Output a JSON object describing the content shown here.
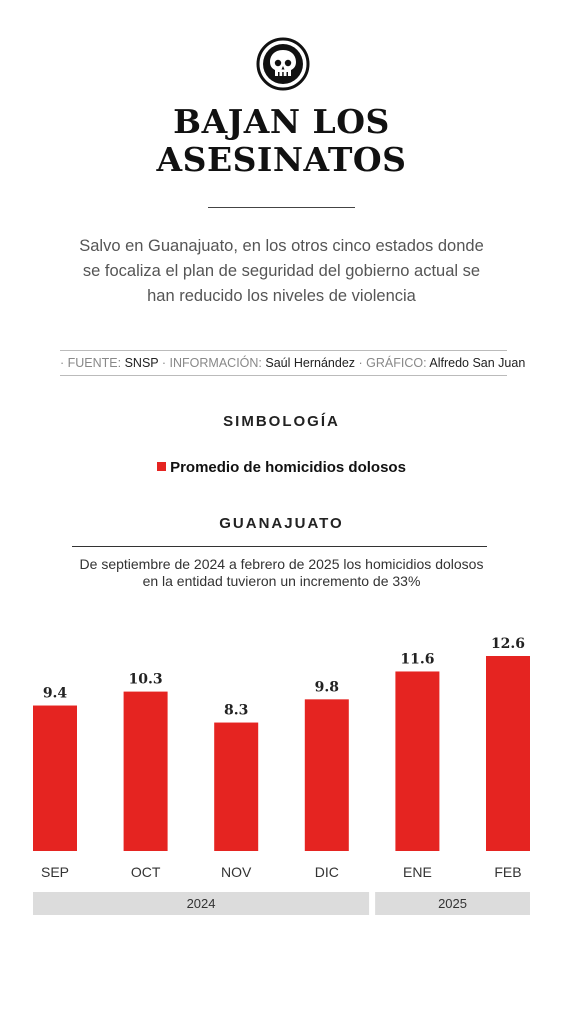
{
  "header": {
    "logo_icon": "skull-icon",
    "title_line1": "BAJAN LOS",
    "title_line2": "ASESINATOS",
    "subtitle": "Salvo en Guanajuato, en los otros cinco estados donde se focaliza el plan de seguridad del gobierno actual se han reducido los niveles de violencia"
  },
  "credits": {
    "fuente_label": "· FUENTE:",
    "fuente_value": "SNSP",
    "informacion_label": "· INFORMACIÓN:",
    "informacion_value": "Saúl Hernández",
    "grafico_label": "· GRÁFICO:",
    "grafico_value": "Alfredo San Juan"
  },
  "legend": {
    "title": "SIMBOLOGÍA",
    "item_label": "Promedio de homicidios dolosos",
    "item_color": "#e52421"
  },
  "section": {
    "title": "GUANAJUATO",
    "description_line1": "De septiembre de 2024 a febrero de 2025 los homicidios dolosos",
    "description_line2": "en la entidad tuvieron un incremento de 33%"
  },
  "chart_data": {
    "type": "bar",
    "categories": [
      "SEP",
      "OCT",
      "NOV",
      "DIC",
      "ENE",
      "FEB"
    ],
    "series": [
      {
        "name": "Promedio de homicidios dolosos",
        "values": [
          9.4,
          10.3,
          8.3,
          9.8,
          11.6,
          12.6
        ],
        "color": "#e52421"
      }
    ],
    "value_labels": [
      "9.4",
      "10.3",
      "8.3",
      "9.8",
      "11.6",
      "12.6"
    ],
    "year_groups": [
      {
        "label": "2024",
        "categories": [
          "SEP",
          "OCT",
          "NOV",
          "DIC"
        ]
      },
      {
        "label": "2025",
        "categories": [
          "ENE",
          "FEB"
        ]
      }
    ],
    "ylim": [
      0,
      12.6
    ],
    "grid": false,
    "xlabel": "",
    "ylabel": ""
  }
}
